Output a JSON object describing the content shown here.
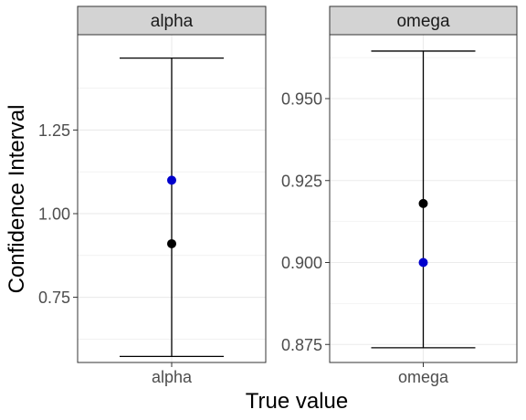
{
  "chart_data": {
    "type": "scatter",
    "xlabel": "True value",
    "ylabel": "Confidence Interval",
    "colors": {
      "estimate": "#000000",
      "true_value": "#0000cd",
      "strip": "#d3d3d3",
      "grid": "#ebebeb"
    },
    "panels": [
      {
        "strip": "alpha",
        "category": "alpha",
        "estimate": 0.91,
        "true_value": 1.1,
        "ci_lower": 0.573,
        "ci_upper": 1.465,
        "ylim": [
          0.555,
          1.535
        ],
        "yticks": [
          {
            "value": 0.75,
            "label": "0.75"
          },
          {
            "value": 1.0,
            "label": "1.00"
          },
          {
            "value": 1.25,
            "label": "1.25"
          }
        ]
      },
      {
        "strip": "omega",
        "category": "omega",
        "estimate": 0.918,
        "true_value": 0.9,
        "ci_lower": 0.874,
        "ci_upper": 0.9645,
        "ylim": [
          0.8695,
          0.9695
        ],
        "yticks": [
          {
            "value": 0.875,
            "label": "0.875"
          },
          {
            "value": 0.9,
            "label": "0.900"
          },
          {
            "value": 0.925,
            "label": "0.925"
          },
          {
            "value": 0.95,
            "label": "0.950"
          }
        ]
      }
    ]
  }
}
